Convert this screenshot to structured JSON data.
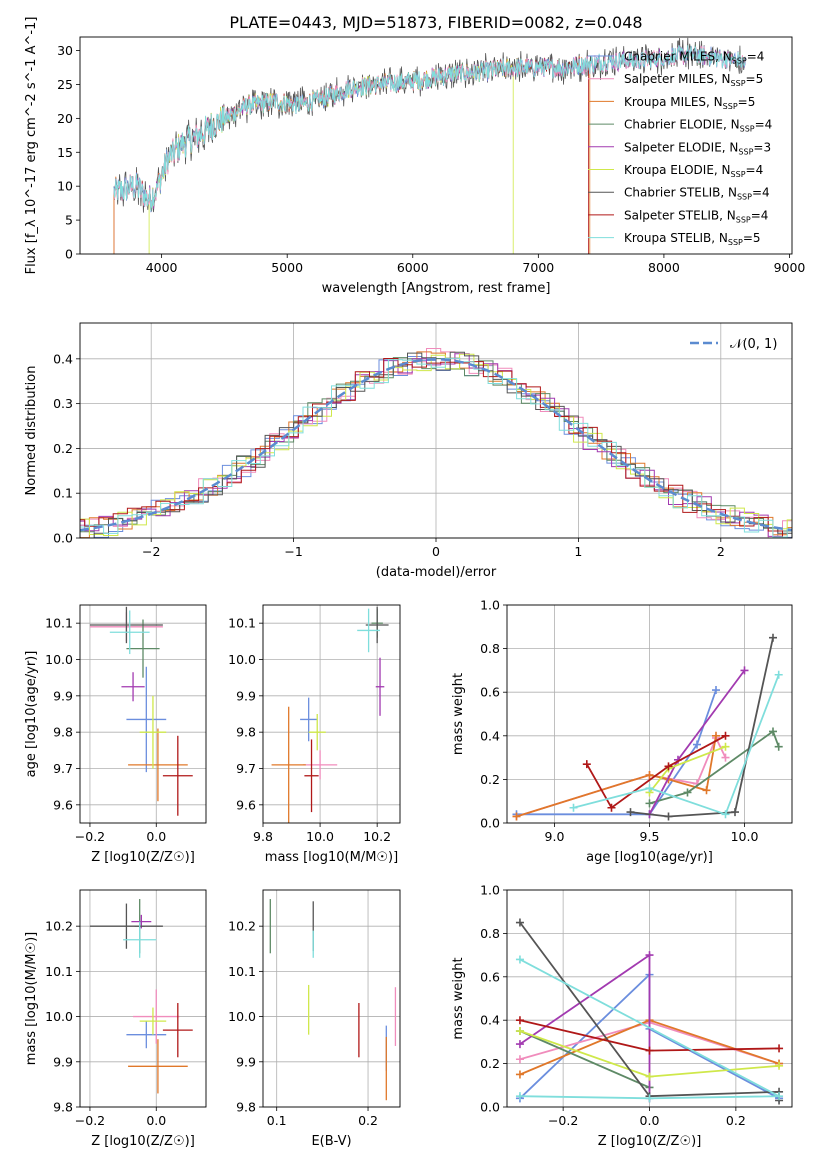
{
  "title": "PLATE=0443, MJD=51873, FIBERID=0082, z=0.048",
  "colors": {
    "Chabrier MILES": "#6b8ede",
    "Salpeter MILES": "#f08cbc",
    "Kroupa MILES": "#e0782a",
    "Chabrier ELODIE": "#5e8a66",
    "Salpeter ELODIE": "#a23ab0",
    "Kroupa ELODIE": "#cfe84a",
    "Chabrier STELIB": "#555555",
    "Salpeter STELIB": "#b01818",
    "Kroupa STELIB": "#7fdedc"
  },
  "chart_data": [
    {
      "id": "spectrum",
      "type": "line",
      "xlabel": "wavelength [Angstrom, rest frame]",
      "ylabel": "Flux [f_λ 10^-17 erg cm^-2 s^-1 A^-1]",
      "xlim": [
        3350,
        9020
      ],
      "ylim": [
        0,
        32
      ],
      "xticks": [
        "4000",
        "5000",
        "6000",
        "7000",
        "8000",
        "9000"
      ],
      "yticks": [
        "0",
        "5",
        "10",
        "15",
        "20",
        "25",
        "30"
      ],
      "grid": false,
      "legend_position": "top-right",
      "legend": [
        {
          "label": "Chabrier MILES",
          "n_ssp": "4"
        },
        {
          "label": "Salpeter MILES",
          "n_ssp": "5"
        },
        {
          "label": "Kroupa MILES",
          "n_ssp": "5"
        },
        {
          "label": "Chabrier ELODIE",
          "n_ssp": "4"
        },
        {
          "label": "Salpeter ELODIE",
          "n_ssp": "3"
        },
        {
          "label": "Kroupa ELODIE",
          "n_ssp": "4"
        },
        {
          "label": "Chabrier STELIB",
          "n_ssp": "4"
        },
        {
          "label": "Salpeter STELIB",
          "n_ssp": "4"
        },
        {
          "label": "Kroupa STELIB",
          "n_ssp": "5"
        }
      ],
      "continuum": [
        [
          3620,
          9
        ],
        [
          3700,
          9.5
        ],
        [
          3800,
          10
        ],
        [
          3900,
          8
        ],
        [
          3960,
          9.5
        ],
        [
          4050,
          14
        ],
        [
          4150,
          16
        ],
        [
          4300,
          17.5
        ],
        [
          4400,
          19
        ],
        [
          4500,
          20
        ],
        [
          4700,
          22
        ],
        [
          4900,
          22.5
        ],
        [
          5100,
          22
        ],
        [
          5300,
          23
        ],
        [
          5500,
          24.5
        ],
        [
          5700,
          25
        ],
        [
          6000,
          25.5
        ],
        [
          6300,
          26.5
        ],
        [
          6600,
          27
        ],
        [
          6800,
          27.5
        ],
        [
          7000,
          27.5
        ],
        [
          7200,
          27.5
        ],
        [
          7400,
          28
        ],
        [
          7600,
          28.5
        ],
        [
          7800,
          28.5
        ],
        [
          8000,
          29
        ],
        [
          8200,
          29.5
        ],
        [
          8400,
          29
        ],
        [
          8600,
          28.5
        ],
        [
          8650,
          28
        ]
      ],
      "truncations": [
        {
          "series": "Kroupa ELODIE",
          "start": 3900,
          "end": 6800
        },
        {
          "series": "Salpeter STELIB",
          "start": 3620,
          "end": 7400
        },
        {
          "series": "Kroupa MILES",
          "start": 3620,
          "end": 7410
        }
      ]
    },
    {
      "id": "residuals",
      "type": "histogram",
      "xlabel": "(data-model)/error",
      "ylabel": "Normed distribution",
      "xlim": [
        -2.5,
        2.5
      ],
      "ylim": [
        0,
        0.48
      ],
      "xticks": [
        "−2",
        "−1",
        "0",
        "1",
        "2"
      ],
      "yticks": [
        "0.0",
        "0.1",
        "0.2",
        "0.3",
        "0.4"
      ],
      "grid": true,
      "bin_width": 0.1,
      "legend": "𝒩(0, 1)",
      "legend_position": "top-right"
    },
    {
      "id": "age-vs-Z",
      "type": "errorbar",
      "xlabel": "Z [log10(Z/Z☉)]",
      "ylabel": "age  [log10(age/yr)]",
      "xlim": [
        -0.23,
        0.15
      ],
      "ylim": [
        9.55,
        10.15
      ],
      "xticks": [
        "−0.2",
        "0.0"
      ],
      "yticks": [
        "9.6",
        "9.7",
        "9.8",
        "9.9",
        "10.0",
        "10.1"
      ],
      "grid": true,
      "points": [
        {
          "series": "Chabrier MILES",
          "x": -0.03,
          "xerr": 0.06,
          "y": 9.835,
          "yerr": 0.145
        },
        {
          "series": "Salpeter MILES",
          "x": -0.09,
          "xerr": 0.11,
          "y": 10.09,
          "yerr": 0.04
        },
        {
          "series": "Kroupa MILES",
          "x": 0.005,
          "xerr": 0.09,
          "y": 9.71,
          "yerr": 0.1
        },
        {
          "series": "Chabrier ELODIE",
          "x": -0.04,
          "xerr": 0.05,
          "y": 10.03,
          "yerr": 0.08
        },
        {
          "series": "Salpeter ELODIE",
          "x": -0.07,
          "xerr": 0.035,
          "y": 9.925,
          "yerr": 0.04
        },
        {
          "series": "Kroupa ELODIE",
          "x": -0.01,
          "xerr": 0.04,
          "y": 9.8,
          "yerr": 0.1
        },
        {
          "series": "Chabrier STELIB",
          "x": -0.09,
          "xerr": 0.11,
          "y": 10.095,
          "yerr": 0.05
        },
        {
          "series": "Salpeter STELIB",
          "x": 0.065,
          "xerr": 0.045,
          "y": 9.68,
          "yerr": 0.11
        },
        {
          "series": "Kroupa STELIB",
          "x": -0.08,
          "xerr": 0.06,
          "y": 10.075,
          "yerr": 0.06
        }
      ]
    },
    {
      "id": "age-vs-mass",
      "type": "errorbar",
      "xlabel": "mass [log10(M/M☉)]",
      "ylabel": "",
      "xlim": [
        9.8,
        10.28
      ],
      "ylim": [
        9.55,
        10.15
      ],
      "xticks": [
        "9.8",
        "10.0",
        "10.2"
      ],
      "yticks": [
        "9.6",
        "9.7",
        "9.8",
        "9.9",
        "10.0",
        "10.1"
      ],
      "grid": true,
      "points": [
        {
          "series": "Chabrier MILES",
          "x": 9.96,
          "xerr": 0.03,
          "y": 9.835,
          "yerr": 0.06
        },
        {
          "series": "Salpeter MILES",
          "x": 10.0,
          "xerr": 0.06,
          "y": 9.71,
          "yerr": 0.04
        },
        {
          "series": "Kroupa MILES",
          "x": 9.89,
          "xerr": 0.06,
          "y": 9.71,
          "yerr": 0.16
        },
        {
          "series": "Chabrier ELODIE",
          "x": 10.2,
          "xerr": 0.02,
          "y": 10.1,
          "yerr": 0.04
        },
        {
          "series": "Salpeter ELODIE",
          "x": 10.21,
          "xerr": 0.015,
          "y": 9.925,
          "yerr": 0.08
        },
        {
          "series": "Kroupa ELODIE",
          "x": 9.99,
          "xerr": 0.03,
          "y": 9.8,
          "yerr": 0.05
        },
        {
          "series": "Chabrier STELIB",
          "x": 10.2,
          "xerr": 0.04,
          "y": 10.095,
          "yerr": 0.05
        },
        {
          "series": "Salpeter STELIB",
          "x": 9.97,
          "xerr": 0.025,
          "y": 9.68,
          "yerr": 0.1
        },
        {
          "series": "Kroupa STELIB",
          "x": 10.17,
          "xerr": 0.04,
          "y": 10.08,
          "yerr": 0.06
        }
      ]
    },
    {
      "id": "massweight-vs-age",
      "type": "line",
      "xlabel": "age  [log10(age/yr)]",
      "ylabel": "mass weight",
      "xlim": [
        8.75,
        10.25
      ],
      "ylim": [
        0,
        1
      ],
      "xticks": [
        "9.0",
        "9.5",
        "10.0"
      ],
      "yticks": [
        "0.0",
        "0.2",
        "0.4",
        "0.6",
        "0.8",
        "1.0"
      ],
      "grid": true,
      "series": [
        {
          "name": "Chabrier MILES",
          "x": [
            8.8,
            9.5,
            9.75,
            9.85
          ],
          "y": [
            0.04,
            0.04,
            0.36,
            0.61
          ]
        },
        {
          "name": "Salpeter MILES",
          "x": [
            8.8,
            9.5,
            9.75,
            9.85,
            9.9
          ],
          "y": [
            0.03,
            0.22,
            0.18,
            0.39,
            0.3
          ]
        },
        {
          "name": "Kroupa MILES",
          "x": [
            8.8,
            9.5,
            9.6,
            9.8,
            9.85
          ],
          "y": [
            0.03,
            0.22,
            0.2,
            0.15,
            0.4
          ]
        },
        {
          "name": "Chabrier ELODIE",
          "x": [
            9.5,
            9.7,
            10.15,
            10.18
          ],
          "y": [
            0.09,
            0.14,
            0.42,
            0.35
          ]
        },
        {
          "name": "Salpeter ELODIE",
          "x": [
            9.5,
            9.65,
            10.0
          ],
          "y": [
            0.04,
            0.29,
            0.7
          ]
        },
        {
          "name": "Kroupa ELODIE",
          "x": [
            9.5,
            9.6,
            9.9
          ],
          "y": [
            0.14,
            0.25,
            0.35
          ]
        },
        {
          "name": "Chabrier STELIB",
          "x": [
            9.4,
            9.6,
            9.95,
            10.15
          ],
          "y": [
            0.05,
            0.03,
            0.05,
            0.85
          ]
        },
        {
          "name": "Salpeter STELIB",
          "x": [
            9.17,
            9.3,
            9.6,
            9.9
          ],
          "y": [
            0.27,
            0.07,
            0.26,
            0.4
          ]
        },
        {
          "name": "Kroupa STELIB",
          "x": [
            9.1,
            9.5,
            9.9,
            10.18
          ],
          "y": [
            0.07,
            0.16,
            0.04,
            0.68
          ]
        }
      ]
    },
    {
      "id": "mass-vs-Z",
      "type": "errorbar",
      "xlabel": "Z [log10(Z/Z☉)]",
      "ylabel": "mass [log10(M/M☉)]",
      "xlim": [
        -0.23,
        0.15
      ],
      "ylim": [
        9.8,
        10.28
      ],
      "xticks": [
        "−0.2",
        "0.0"
      ],
      "yticks": [
        "9.8",
        "9.9",
        "10.0",
        "10.1",
        "10.2"
      ],
      "grid": true,
      "points": [
        {
          "series": "Chabrier MILES",
          "x": -0.03,
          "xerr": 0.06,
          "y": 9.96,
          "yerr": 0.03
        },
        {
          "series": "Salpeter MILES",
          "x": -0.0,
          "xerr": 0.07,
          "y": 10.0,
          "yerr": 0.06
        },
        {
          "series": "Kroupa MILES",
          "x": 0.005,
          "xerr": 0.09,
          "y": 9.89,
          "yerr": 0.06
        },
        {
          "series": "Chabrier ELODIE",
          "x": -0.05,
          "xerr": 0.015,
          "y": 10.2,
          "yerr": 0.06
        },
        {
          "series": "Salpeter ELODIE",
          "x": -0.045,
          "xerr": 0.03,
          "y": 10.21,
          "yerr": 0.015
        },
        {
          "series": "Kroupa ELODIE",
          "x": -0.01,
          "xerr": 0.04,
          "y": 9.99,
          "yerr": 0.03
        },
        {
          "series": "Chabrier STELIB",
          "x": -0.09,
          "xerr": 0.11,
          "y": 10.2,
          "yerr": 0.05
        },
        {
          "series": "Salpeter STELIB",
          "x": 0.065,
          "xerr": 0.045,
          "y": 9.97,
          "yerr": 0.06
        },
        {
          "series": "Kroupa STELIB",
          "x": -0.05,
          "xerr": 0.05,
          "y": 10.17,
          "yerr": 0.04
        }
      ]
    },
    {
      "id": "mass-vs-ebv",
      "type": "errorbar",
      "xlabel": "E(B-V)",
      "ylabel": "",
      "xlim": [
        0.085,
        0.235
      ],
      "ylim": [
        9.8,
        10.28
      ],
      "xticks": [
        "0.1",
        "0.2"
      ],
      "yticks": [
        "9.8",
        "9.9",
        "10.0",
        "10.1",
        "10.2"
      ],
      "grid": true,
      "points": [
        {
          "series": "Chabrier ELODIE",
          "x": 0.093,
          "y": 10.2,
          "yerr": 0.06
        },
        {
          "series": "Kroupa ELODIE",
          "x": 0.135,
          "y": 10.015,
          "yerr": 0.055
        },
        {
          "series": "Chabrier STELIB",
          "x": 0.14,
          "y": 10.2,
          "yerr": 0.055
        },
        {
          "series": "Kroupa STELIB",
          "x": 0.14,
          "y": 10.16,
          "yerr": 0.03
        },
        {
          "series": "Salpeter STELIB",
          "x": 0.19,
          "y": 9.97,
          "yerr": 0.06
        },
        {
          "series": "Chabrier MILES",
          "x": 0.22,
          "y": 9.93,
          "yerr": 0.05
        },
        {
          "series": "Kroupa MILES",
          "x": 0.22,
          "y": 9.885,
          "yerr": 0.07
        },
        {
          "series": "Salpeter MILES",
          "x": 0.23,
          "y": 10.0,
          "yerr": 0.065
        }
      ]
    },
    {
      "id": "massweight-vs-Z",
      "type": "line",
      "xlabel": "Z [log10(Z/Z☉)]",
      "ylabel": "mass weight",
      "xlim": [
        -0.33,
        0.33
      ],
      "ylim": [
        0,
        1
      ],
      "xticks": [
        "−0.2",
        "0.0",
        "0.2"
      ],
      "yticks": [
        "0.0",
        "0.2",
        "0.4",
        "0.6",
        "0.8",
        "1.0"
      ],
      "grid": true,
      "series": [
        {
          "name": "Chabrier MILES",
          "x": [
            -0.3,
            0.0,
            0.0,
            0.3
          ],
          "y": [
            0.04,
            0.61,
            0.36,
            0.04
          ]
        },
        {
          "name": "Salpeter MILES",
          "x": [
            -0.3,
            0.0,
            0.3
          ],
          "y": [
            0.22,
            0.39,
            0.2
          ]
        },
        {
          "name": "Kroupa MILES",
          "x": [
            -0.3,
            0.0,
            0.3
          ],
          "y": [
            0.15,
            0.4,
            0.2
          ]
        },
        {
          "name": "Chabrier ELODIE",
          "x": [
            -0.3,
            0.0
          ],
          "y": [
            0.35,
            0.09
          ]
        },
        {
          "name": "Salpeter ELODIE",
          "x": [
            -0.3,
            0.0,
            0.0
          ],
          "y": [
            0.29,
            0.7,
            0.04
          ]
        },
        {
          "name": "Kroupa ELODIE",
          "x": [
            -0.3,
            0.0,
            0.3
          ],
          "y": [
            0.35,
            0.14,
            0.19
          ]
        },
        {
          "name": "Chabrier STELIB",
          "x": [
            -0.3,
            0.0,
            0.3,
            0.3
          ],
          "y": [
            0.85,
            0.05,
            0.07,
            0.03
          ]
        },
        {
          "name": "Salpeter STELIB",
          "x": [
            -0.3,
            0.0,
            0.3
          ],
          "y": [
            0.4,
            0.26,
            0.27
          ]
        },
        {
          "name": "Kroupa STELIB",
          "x": [
            -0.3,
            0.0,
            0.3,
            -0.3
          ],
          "y": [
            0.05,
            0.04,
            0.05,
            0.68
          ]
        }
      ]
    }
  ]
}
